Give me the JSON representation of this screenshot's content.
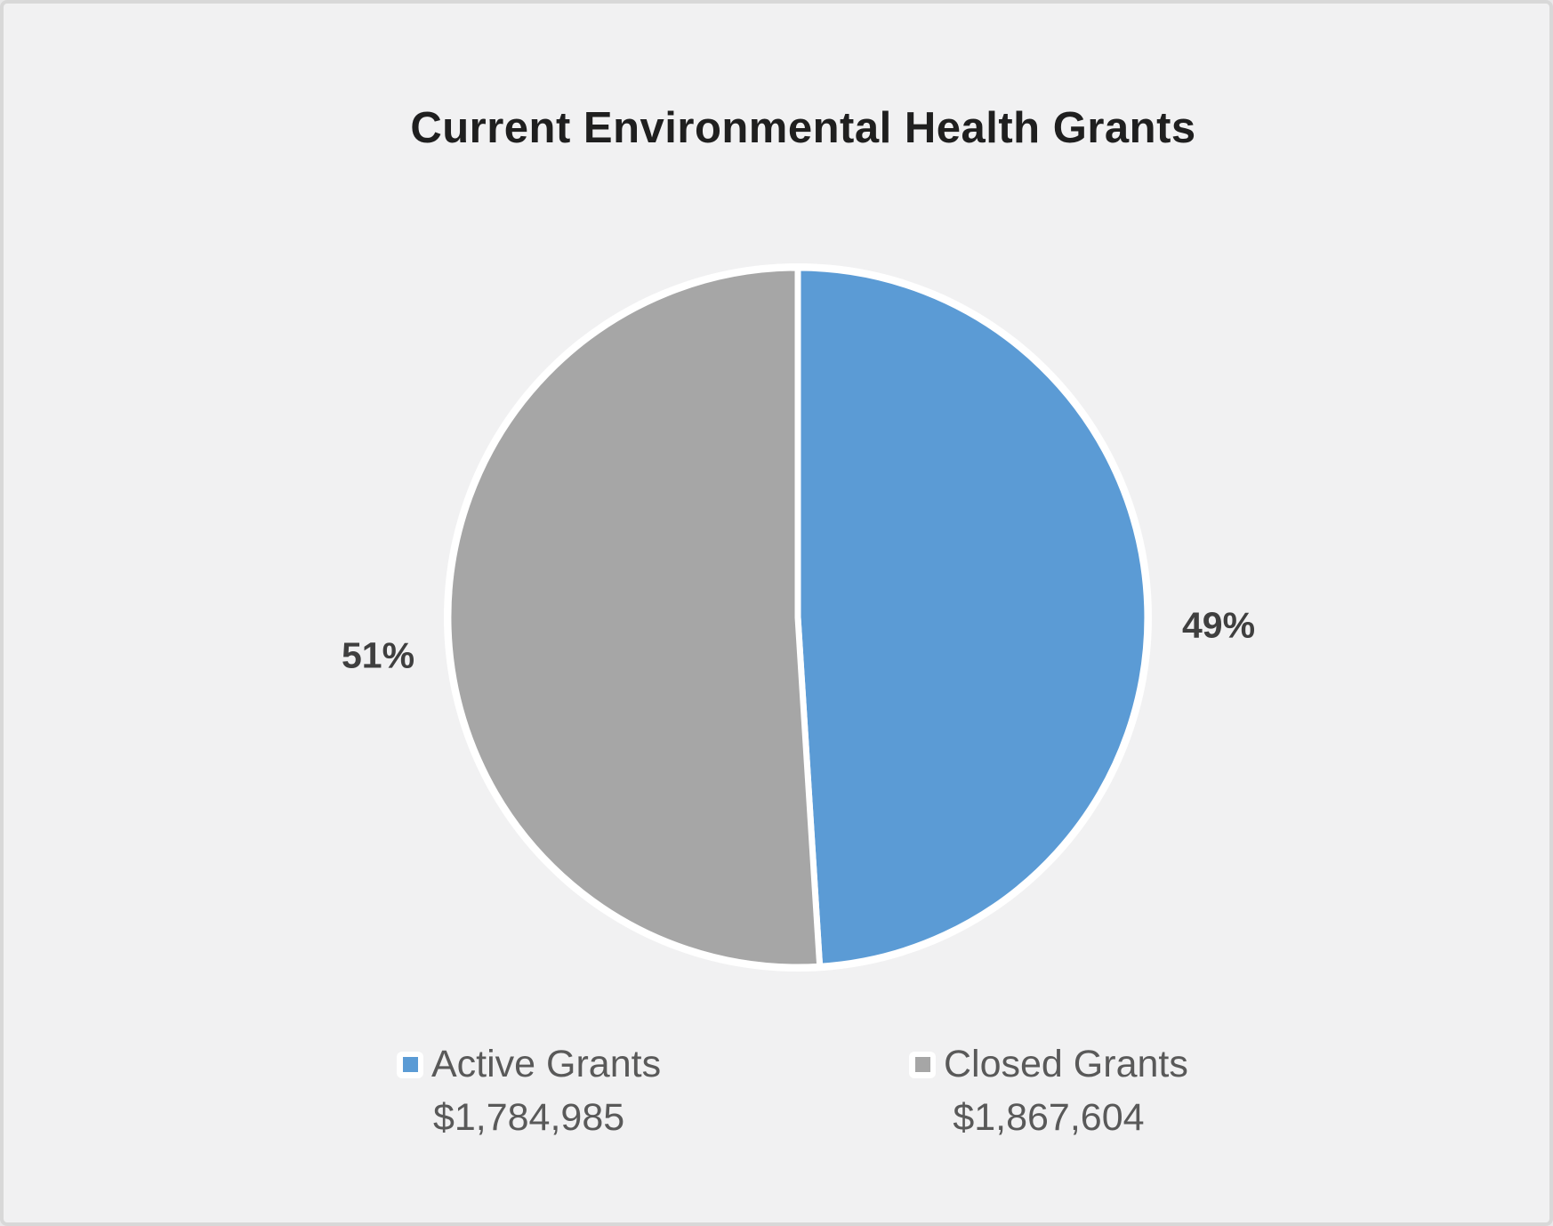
{
  "chart_data": {
    "type": "pie",
    "title": "Current Environmental Health Grants",
    "legend_position": "bottom",
    "start_angle_deg": 0,
    "direction": "clockwise",
    "background_color": "#F1F1F2",
    "slices": [
      {
        "label": "Active Grants",
        "value": 1784985,
        "value_display": "$1,784,985",
        "percent": 49,
        "percent_display": "49%",
        "color": "#5B9BD5"
      },
      {
        "label": "Closed Grants",
        "value": 1867604,
        "value_display": "$1,867,604",
        "percent": 51,
        "percent_display": "51%",
        "color": "#A6A6A6"
      }
    ]
  }
}
